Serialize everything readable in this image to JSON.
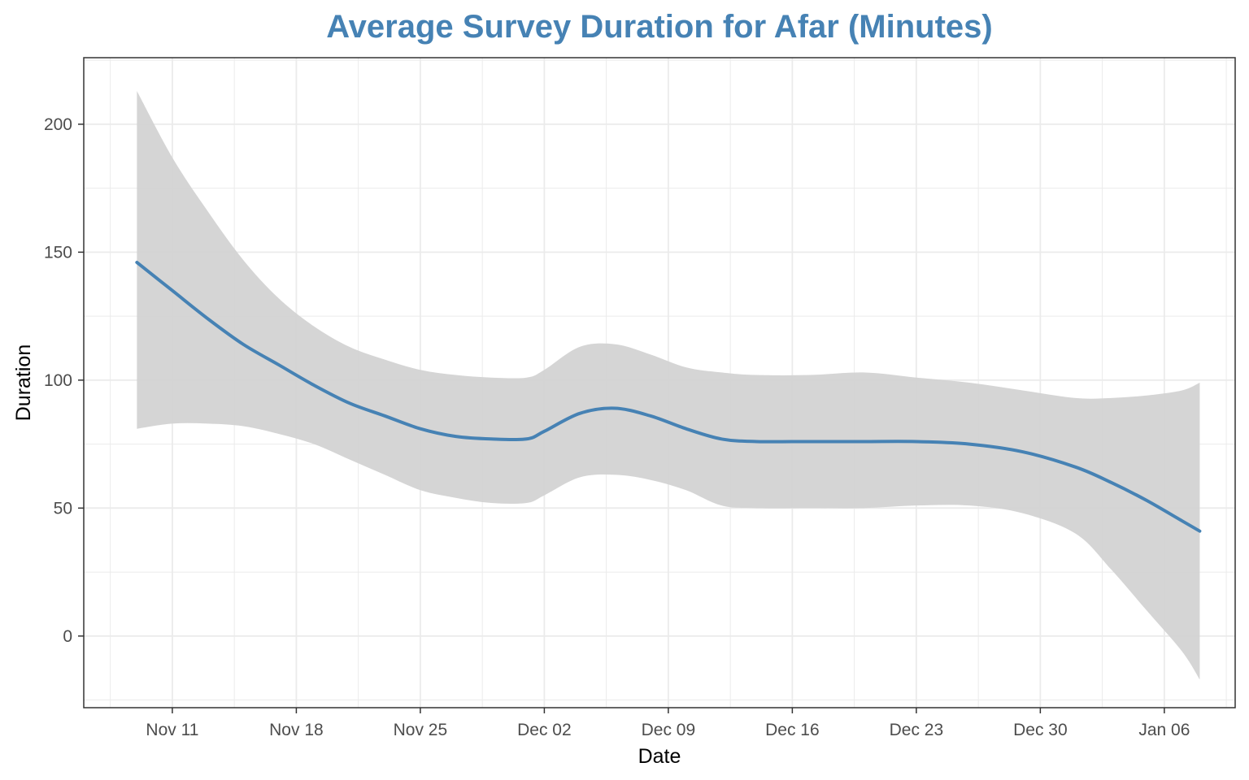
{
  "chart_data": {
    "type": "line",
    "title": "Average Survey Duration for Afar (Minutes)",
    "xlabel": "Date",
    "ylabel": "Duration",
    "x_axis_type": "date",
    "xlim": [
      "2019-11-06",
      "2020-01-10"
    ],
    "ylim": [
      -28,
      226
    ],
    "x_ticks": [
      {
        "date": "2019-11-11",
        "label": "Nov 11"
      },
      {
        "date": "2019-11-18",
        "label": "Nov 18"
      },
      {
        "date": "2019-11-25",
        "label": "Nov 25"
      },
      {
        "date": "2019-12-02",
        "label": "Dec 02"
      },
      {
        "date": "2019-12-09",
        "label": "Dec 09"
      },
      {
        "date": "2019-12-16",
        "label": "Dec 16"
      },
      {
        "date": "2019-12-23",
        "label": "Dec 23"
      },
      {
        "date": "2019-12-30",
        "label": "Dec 30"
      },
      {
        "date": "2020-01-06",
        "label": "Jan 06"
      }
    ],
    "y_ticks": [
      0,
      50,
      100,
      150,
      200
    ],
    "grid": true,
    "series": [
      {
        "kind": "smooth",
        "color": "#4682B4",
        "band_color": "#D3D3D3",
        "points": [
          {
            "x": "2019-11-09",
            "y": 146,
            "ymin": 81,
            "ymax": 213
          },
          {
            "x": "2019-11-11",
            "y": 135,
            "ymin": 83,
            "ymax": 187
          },
          {
            "x": "2019-11-13",
            "y": 124,
            "ymin": 83,
            "ymax": 166
          },
          {
            "x": "2019-11-15",
            "y": 114,
            "ymin": 82,
            "ymax": 147
          },
          {
            "x": "2019-11-17",
            "y": 106,
            "ymin": 79,
            "ymax": 132
          },
          {
            "x": "2019-11-19",
            "y": 98,
            "ymin": 75,
            "ymax": 121
          },
          {
            "x": "2019-11-21",
            "y": 91,
            "ymin": 69,
            "ymax": 113
          },
          {
            "x": "2019-11-23",
            "y": 86,
            "ymin": 63,
            "ymax": 108
          },
          {
            "x": "2019-11-25",
            "y": 81,
            "ymin": 57,
            "ymax": 104
          },
          {
            "x": "2019-11-27",
            "y": 78,
            "ymin": 54,
            "ymax": 102
          },
          {
            "x": "2019-11-29",
            "y": 77,
            "ymin": 52,
            "ymax": 101
          },
          {
            "x": "2019-12-01",
            "y": 77,
            "ymin": 52,
            "ymax": 101
          },
          {
            "x": "2019-12-02",
            "y": 80,
            "ymin": 55,
            "ymax": 104
          },
          {
            "x": "2019-12-04",
            "y": 87,
            "ymin": 62,
            "ymax": 113
          },
          {
            "x": "2019-12-06",
            "y": 89,
            "ymin": 63,
            "ymax": 114
          },
          {
            "x": "2019-12-08",
            "y": 86,
            "ymin": 61,
            "ymax": 110
          },
          {
            "x": "2019-12-10",
            "y": 81,
            "ymin": 57,
            "ymax": 105
          },
          {
            "x": "2019-12-12",
            "y": 77,
            "ymin": 51,
            "ymax": 103
          },
          {
            "x": "2019-12-14",
            "y": 76,
            "ymin": 50,
            "ymax": 102
          },
          {
            "x": "2019-12-17",
            "y": 76,
            "ymin": 50,
            "ymax": 102
          },
          {
            "x": "2019-12-20",
            "y": 76,
            "ymin": 50,
            "ymax": 103
          },
          {
            "x": "2019-12-23",
            "y": 76,
            "ymin": 51,
            "ymax": 101
          },
          {
            "x": "2019-12-26",
            "y": 75,
            "ymin": 51,
            "ymax": 99
          },
          {
            "x": "2019-12-29",
            "y": 72,
            "ymin": 48,
            "ymax": 96
          },
          {
            "x": "2020-01-01",
            "y": 66,
            "ymin": 40,
            "ymax": 93
          },
          {
            "x": "2020-01-03",
            "y": 60,
            "ymin": 26,
            "ymax": 93
          },
          {
            "x": "2020-01-05",
            "y": 53,
            "ymin": 10,
            "ymax": 94
          },
          {
            "x": "2020-01-07",
            "y": 45,
            "ymin": -6,
            "ymax": 96
          },
          {
            "x": "2020-01-08",
            "y": 41,
            "ymin": -17,
            "ymax": 99
          }
        ]
      }
    ],
    "colors": {
      "title": "#4682B4",
      "line": "#4682B4",
      "band": "#D3D3D3",
      "grid": "#EBEBEB",
      "panel_border": "#333333",
      "tick_text": "#4D4D4D"
    }
  }
}
